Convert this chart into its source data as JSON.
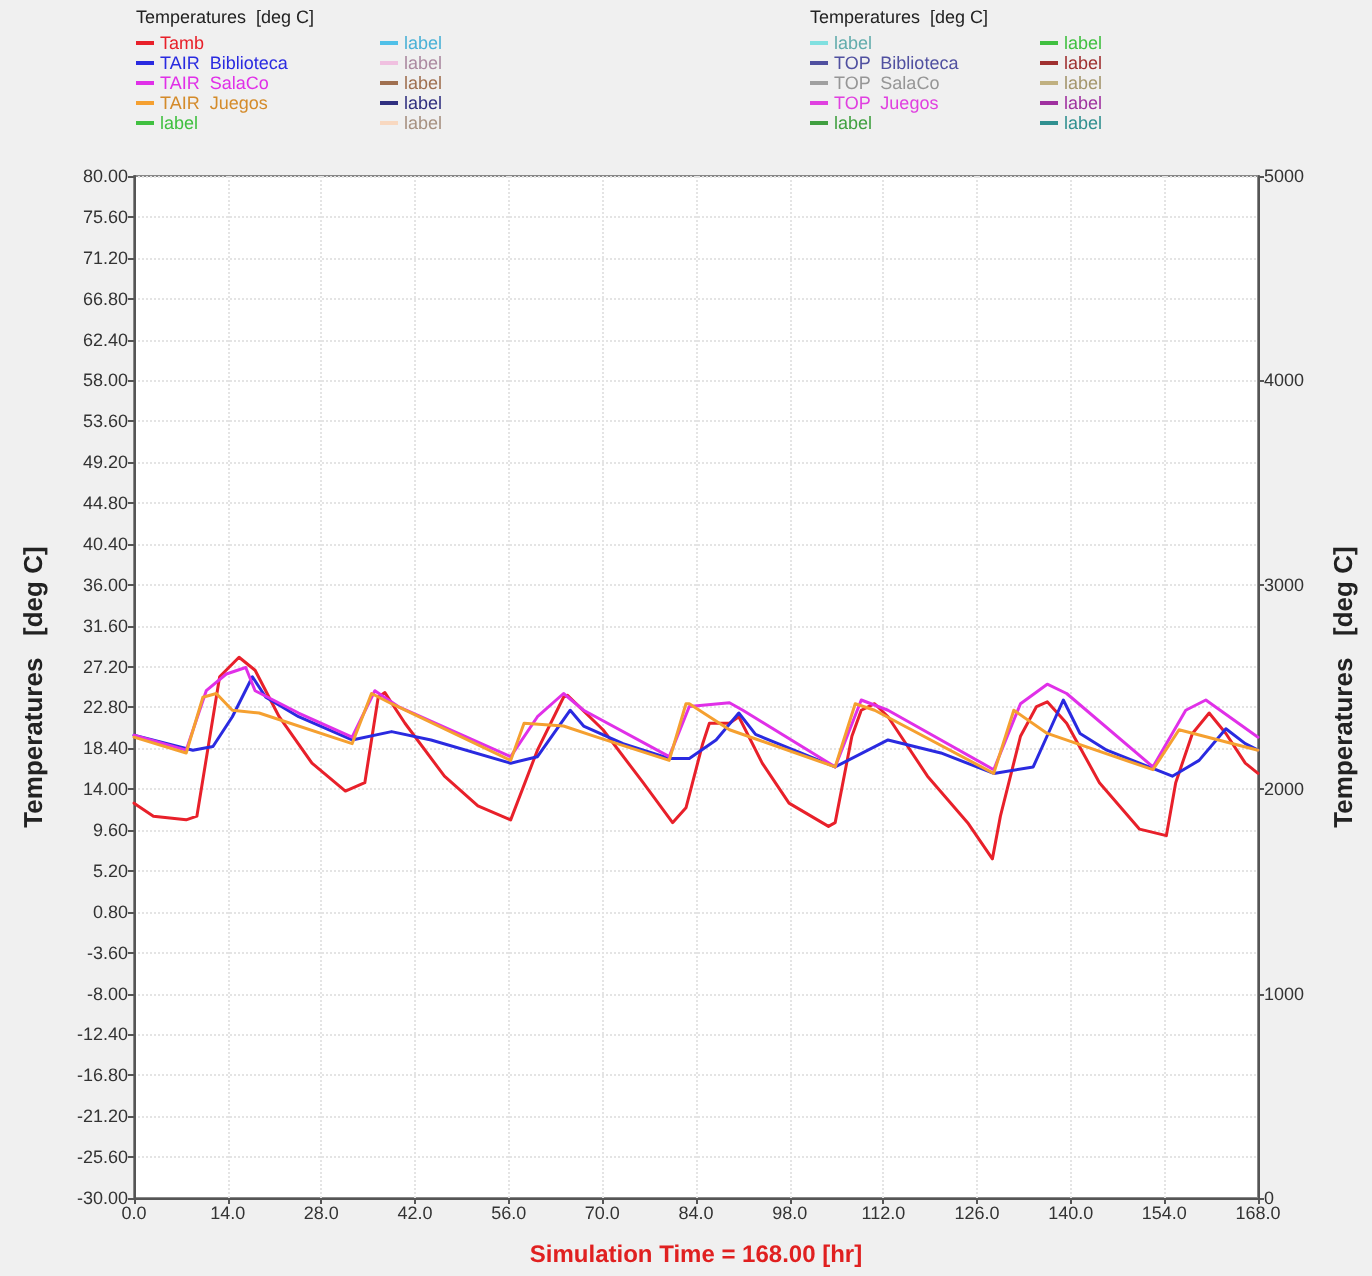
{
  "chart_data": {
    "type": "line",
    "xlabel": "Simulation Time = 168.00 [hr]",
    "ylabel": "Temperatures   [deg C]",
    "y2label": "Temperatures   [deg C]",
    "legend_title": "Temperatures  [deg C]",
    "annotations": [
      "Temperatures  [deg C]"
    ],
    "xlim": [
      0,
      168
    ],
    "xticks": [
      {
        "value": 0,
        "label": "0.0"
      },
      {
        "value": 14,
        "label": "14.0"
      },
      {
        "value": 28,
        "label": "28.0"
      },
      {
        "value": 42,
        "label": "42.0"
      },
      {
        "value": 56,
        "label": "56.0"
      },
      {
        "value": 70,
        "label": "70.0"
      },
      {
        "value": 84,
        "label": "84.0"
      },
      {
        "value": 98,
        "label": "98.0"
      },
      {
        "value": 112,
        "label": "112.0"
      },
      {
        "value": 126,
        "label": "126.0"
      },
      {
        "value": 140,
        "label": "140.0"
      },
      {
        "value": 154,
        "label": "154.0"
      },
      {
        "value": 168,
        "label": "168.0"
      }
    ],
    "ylim": [
      -30,
      80
    ],
    "yticks": [
      {
        "value": -30,
        "label": "-30.00"
      },
      {
        "value": -25.6,
        "label": "-25.60"
      },
      {
        "value": -21.2,
        "label": "-21.20"
      },
      {
        "value": -16.8,
        "label": "-16.80"
      },
      {
        "value": -12.4,
        "label": "-12.40"
      },
      {
        "value": -8,
        "label": "-8.00"
      },
      {
        "value": -3.6,
        "label": "-3.60"
      },
      {
        "value": 0.8,
        "label": "0.80"
      },
      {
        "value": 5.2,
        "label": "5.20"
      },
      {
        "value": 9.6,
        "label": "9.60"
      },
      {
        "value": 14,
        "label": "14.00"
      },
      {
        "value": 18.4,
        "label": "18.40"
      },
      {
        "value": 22.8,
        "label": "22.80"
      },
      {
        "value": 27.2,
        "label": "27.20"
      },
      {
        "value": 31.6,
        "label": "31.60"
      },
      {
        "value": 36,
        "label": "36.00"
      },
      {
        "value": 40.4,
        "label": "40.40"
      },
      {
        "value": 44.8,
        "label": "44.80"
      },
      {
        "value": 49.2,
        "label": "49.20"
      },
      {
        "value": 53.6,
        "label": "53.60"
      },
      {
        "value": 58,
        "label": "58.00"
      },
      {
        "value": 62.4,
        "label": "62.40"
      },
      {
        "value": 66.8,
        "label": "66.80"
      },
      {
        "value": 71.2,
        "label": "71.20"
      },
      {
        "value": 75.6,
        "label": "75.60"
      },
      {
        "value": 80,
        "label": "80.00"
      }
    ],
    "y2lim": [
      0,
      5000
    ],
    "y2ticks": [
      0,
      1000,
      2000,
      3000,
      4000,
      5000
    ],
    "grid": true,
    "legend": "top",
    "marker": "none",
    "line_style": "solid",
    "series": [
      {
        "name": "Tamb",
        "color": "#e8202a",
        "x": [
          0,
          2.9,
          7.8,
          9.4,
          12.8,
          15.7,
          18.1,
          21.7,
          26.6,
          31.6,
          34.5,
          36.5,
          37.5,
          40.5,
          46.4,
          51.4,
          56.3,
          60.3,
          64.2,
          64.8,
          70.1,
          76.1,
          80.5,
          82.5,
          85,
          86,
          89,
          90.4,
          93.9,
          97.9,
          103.8,
          104.8,
          107.3,
          108.7,
          110.7,
          112.7,
          118.6,
          124.6,
          128.3,
          129.5,
          132.5,
          134.9,
          136.5,
          139.4,
          144.3,
          150.3,
          154.3,
          155.7,
          158.2,
          160.7,
          163.2,
          166.1,
          168
        ],
        "values": [
          12.5,
          11.1,
          10.7,
          11.1,
          26.1,
          28.2,
          26.8,
          21.8,
          16.8,
          13.8,
          14.7,
          23.9,
          24.4,
          21.1,
          15.4,
          12.2,
          10.7,
          18.2,
          23.9,
          24.1,
          20.4,
          14.7,
          10.4,
          12,
          18.9,
          21.1,
          21.1,
          21.8,
          16.8,
          12.5,
          10,
          10.4,
          19.7,
          22.5,
          23.2,
          21.8,
          15.4,
          10.4,
          6.5,
          11.1,
          19.7,
          22.9,
          23.4,
          21.1,
          14.7,
          9.7,
          9,
          14.7,
          20,
          22.2,
          20,
          16.8,
          15.7
        ]
      },
      {
        "name": "TAIR  Biblioteca",
        "color": "#2a2ae0",
        "x": [
          0,
          8.8,
          11.8,
          14.7,
          17.7,
          19.7,
          24.6,
          32.6,
          38.5,
          44.4,
          56.3,
          60.3,
          65.2,
          67.2,
          73.1,
          80,
          83,
          87,
          90.4,
          92.9,
          104.8,
          112.7,
          120.6,
          128.5,
          134.4,
          138.9,
          141.4,
          145.4,
          155.2,
          159.2,
          163.2,
          166.1,
          168
        ],
        "values": [
          19.8,
          18.2,
          18.6,
          21.8,
          26.1,
          23.9,
          21.8,
          19.3,
          20.2,
          19.3,
          16.8,
          17.5,
          22.5,
          20.8,
          18.9,
          17.3,
          17.3,
          19.3,
          22.2,
          19.9,
          16.4,
          19.3,
          17.9,
          15.7,
          16.4,
          23.6,
          20,
          18.2,
          15.4,
          17.1,
          20.5,
          18.9,
          18.2
        ]
      },
      {
        "name": "TAIR  SalaCo",
        "color": "#e030e8",
        "x": [
          0,
          7.8,
          10.8,
          13.8,
          16.7,
          18.1,
          24.6,
          32.6,
          36,
          39.5,
          56.3,
          60.3,
          64.2,
          67.2,
          80,
          83,
          89,
          91,
          104.8,
          108.7,
          112.7,
          128.5,
          132.5,
          136.5,
          139.4,
          152.3,
          157.2,
          160.2,
          168
        ],
        "values": [
          19.8,
          18.2,
          24.6,
          26.4,
          27.1,
          24.6,
          22.2,
          19.6,
          24.6,
          22.9,
          17.5,
          21.8,
          24.3,
          22.5,
          17.5,
          22.9,
          23.3,
          22.5,
          16.4,
          23.6,
          22.5,
          16.1,
          23.2,
          25.3,
          24.3,
          16.4,
          22.5,
          23.6,
          19.6
        ]
      },
      {
        "name": "TAIR  Juegos",
        "color": "#f5a030",
        "x": [
          0,
          7.8,
          10.3,
          12.3,
          14.7,
          18.7,
          32.6,
          35.5,
          38.5,
          56.3,
          58.3,
          64.2,
          69.2,
          80,
          82.5,
          83,
          89,
          104.8,
          107.8,
          110.7,
          128.5,
          131.5,
          136.5,
          152.3,
          156.2,
          168
        ],
        "values": [
          19.6,
          17.9,
          23.9,
          24.3,
          22.5,
          22.2,
          18.9,
          24.3,
          23.2,
          17.1,
          21.1,
          20.8,
          19.6,
          17.1,
          23.2,
          23.2,
          20.4,
          16.4,
          23.2,
          22.5,
          15.7,
          22.5,
          20,
          16.1,
          20.4,
          18.2
        ]
      },
      {
        "name": "label",
        "color": "#40c040"
      },
      {
        "name": "label",
        "color": "#50c0e8"
      },
      {
        "name": "label",
        "color": "#f0c0e0"
      },
      {
        "name": "label",
        "color": "#a07050"
      },
      {
        "name": "label",
        "color": "#303080"
      },
      {
        "name": "label",
        "color": "#f8d8c0"
      },
      {
        "name": "label",
        "color": "#80e0e0"
      },
      {
        "name": "TOP  Biblioteca",
        "color": "#5050a0"
      },
      {
        "name": "TOP  SalaCo",
        "color": "#a0a0a0"
      },
      {
        "name": "TOP  Juegos",
        "color": "#e040e0"
      },
      {
        "name": "label",
        "color": "#40a040"
      },
      {
        "name": "label",
        "color": "#40c040"
      },
      {
        "name": "label",
        "color": "#a03030"
      },
      {
        "name": "label",
        "color": "#c0b080"
      },
      {
        "name": "label",
        "color": "#a030a0"
      },
      {
        "name": "label",
        "color": "#309090"
      }
    ]
  }
}
